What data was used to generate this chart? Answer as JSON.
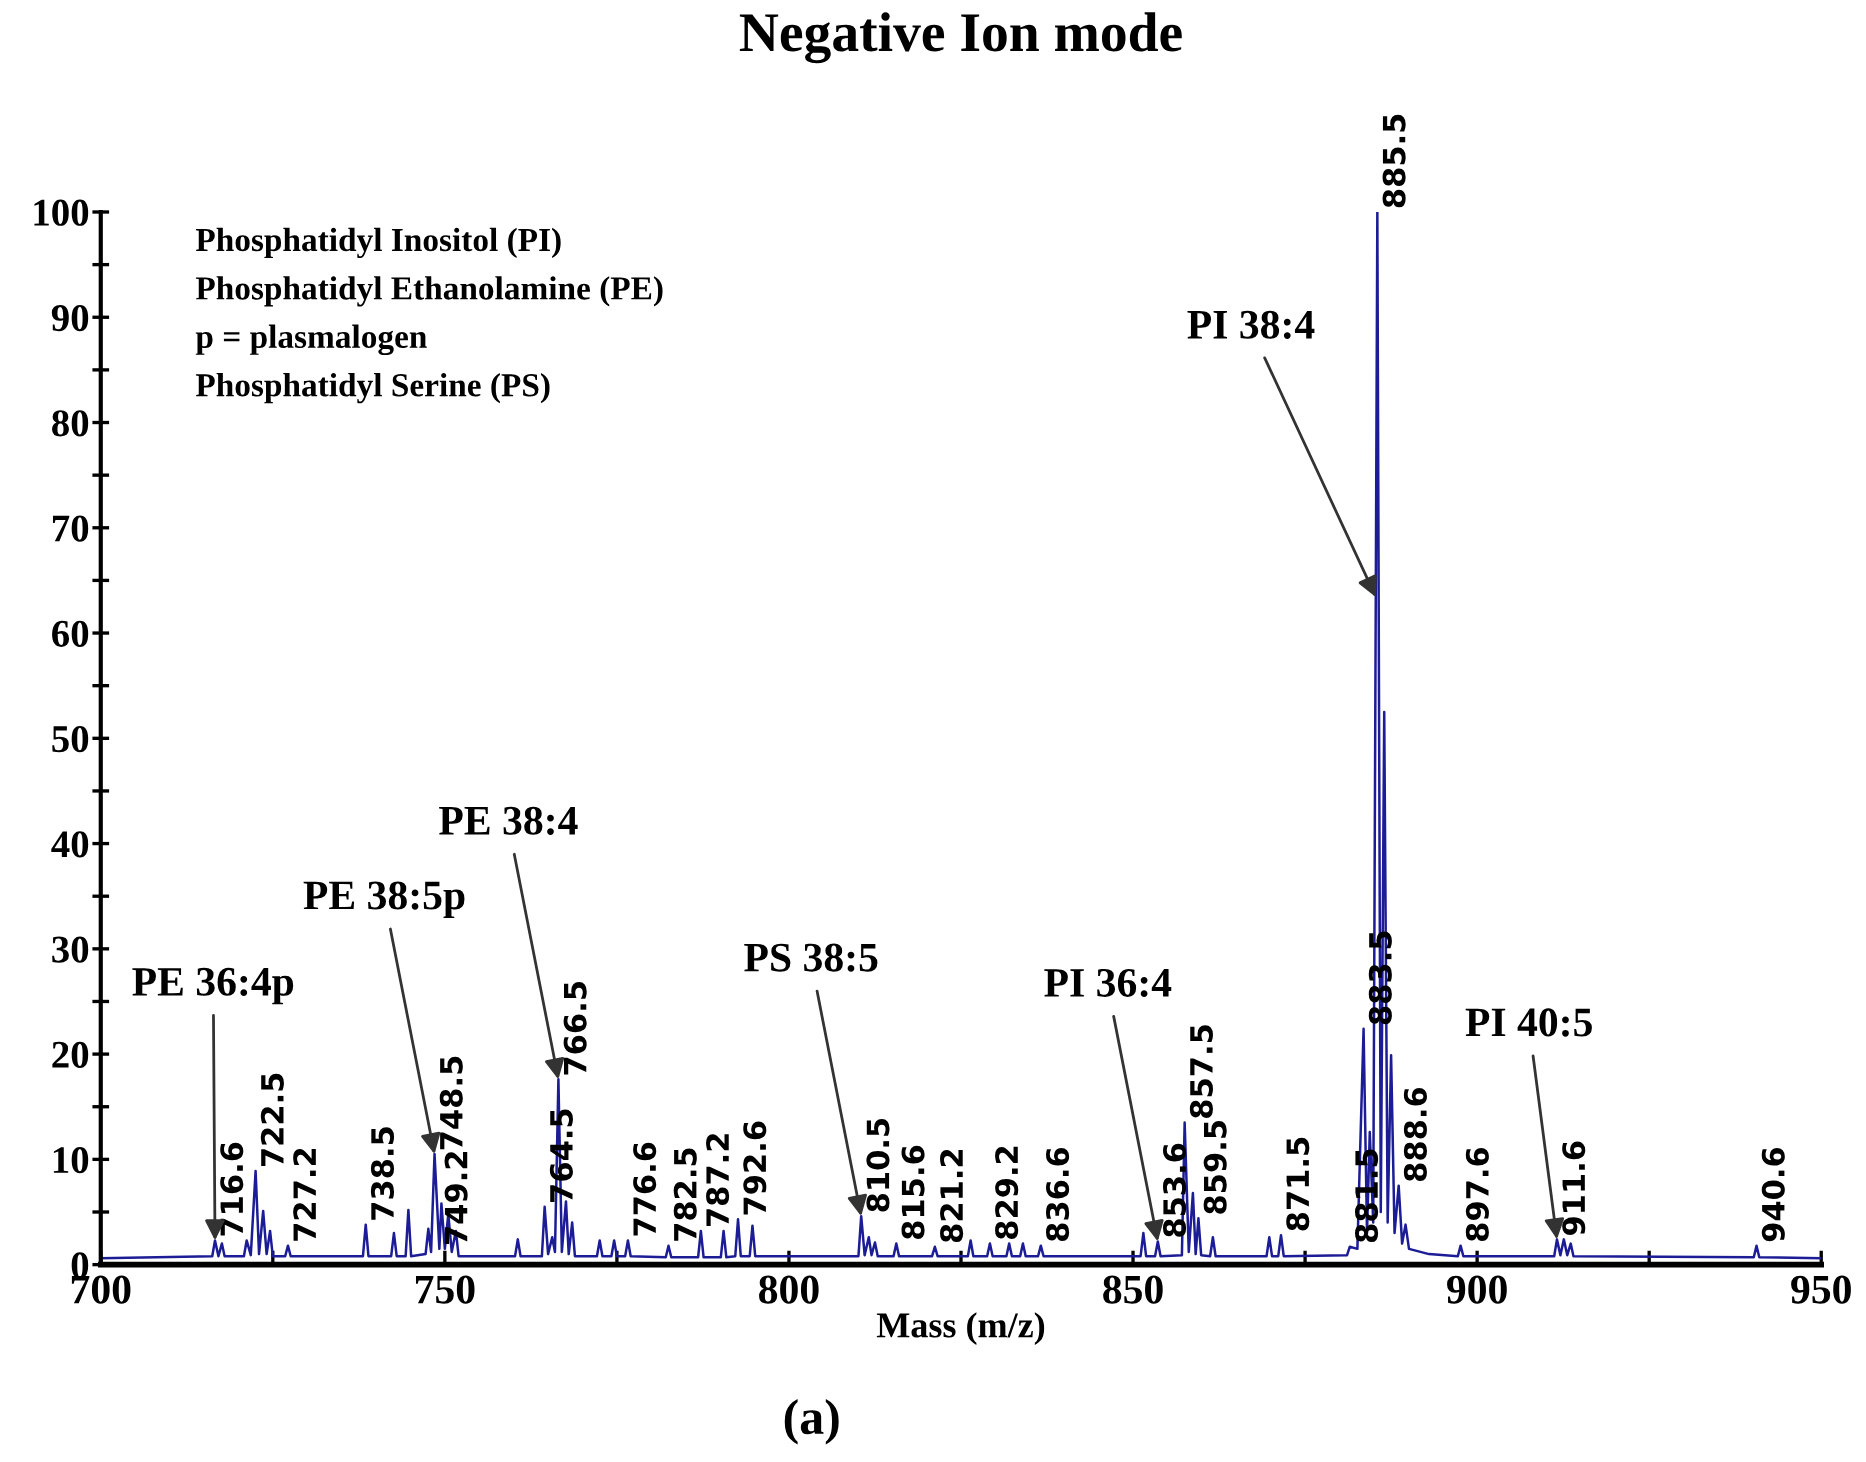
{
  "chart_data": {
    "type": "line",
    "title": "Negative Ion mode",
    "xlabel": "Mass (m/z)",
    "xlim": [
      700,
      950
    ],
    "ylim": [
      0,
      100
    ],
    "xticks": [
      700,
      {
        "value": 725,
        "label": null
      },
      750,
      {
        "value": 775,
        "label": null
      },
      800,
      {
        "value": 825,
        "label": null
      },
      850,
      {
        "value": 875,
        "label": null
      },
      900,
      {
        "value": 925,
        "label": null
      },
      950
    ],
    "yticks": [
      0,
      {
        "value": 5,
        "label": null
      },
      10,
      {
        "value": 15,
        "label": null
      },
      20,
      {
        "value": 25,
        "label": null
      },
      30,
      {
        "value": 35,
        "label": null
      },
      40,
      {
        "value": 45,
        "label": null
      },
      50,
      {
        "value": 55,
        "label": null
      },
      60,
      {
        "value": 65,
        "label": null
      },
      70,
      {
        "value": 75,
        "label": null
      },
      80,
      {
        "value": 85,
        "label": null
      },
      90,
      {
        "value": 95,
        "label": null
      },
      100
    ],
    "grid": false,
    "legend": false,
    "marker": "none",
    "line_style": "solid",
    "series": [
      {
        "color": "#1c1c96",
        "x": [
          700,
          716.2,
          716.6,
          717.1,
          717.6,
          718.0,
          720.8,
          721.2,
          721.8,
          722.5,
          723.0,
          723.6,
          724.1,
          724.6,
          725.0,
          726.8,
          727.2,
          727.6,
          738.1,
          738.5,
          738.9,
          742.2,
          742.6,
          743.0,
          744.3,
          744.7,
          745.1,
          747.2,
          747.6,
          748.0,
          748.5,
          749.2,
          749.5,
          750.0,
          750.5,
          751.0,
          751.6,
          752.0,
          760.2,
          760.6,
          761.0,
          764.1,
          764.5,
          765.0,
          765.6,
          766.0,
          766.5,
          767.0,
          767.6,
          768.0,
          768.5,
          768.9,
          772.1,
          772.5,
          772.9,
          774.2,
          774.6,
          775.0,
          776.2,
          776.6,
          777.0,
          782.1,
          782.5,
          782.9,
          786.8,
          787.2,
          787.6,
          790.1,
          790.5,
          790.9,
          792.2,
          792.6,
          793.0,
          794.3,
          794.7,
          795.1,
          810.1,
          810.5,
          811.0,
          811.6,
          812.0,
          812.5,
          812.9,
          815.2,
          815.6,
          816.0,
          820.8,
          821.2,
          821.6,
          826.0,
          826.4,
          826.8,
          828.8,
          829.2,
          829.6,
          831.6,
          832.0,
          832.4,
          833.6,
          834.0,
          834.4,
          836.2,
          836.6,
          837.0,
          851.1,
          851.5,
          851.9,
          853.2,
          853.6,
          854.0,
          857.1,
          857.5,
          858.1,
          858.7,
          859.1,
          859.5,
          859.9,
          861.2,
          861.6,
          862.0,
          869.4,
          869.8,
          870.2,
          871.1,
          871.5,
          871.9,
          881.1,
          881.5,
          882.6,
          883.5,
          884.0,
          884.4,
          884.9,
          885.5,
          886.0,
          886.5,
          887.0,
          887.5,
          888.0,
          888.6,
          889.1,
          889.6,
          890.1,
          893,
          897.2,
          897.6,
          898.0,
          911.2,
          911.6,
          912.1,
          912.6,
          913.1,
          913.6,
          914.0,
          940.2,
          940.6,
          941.0,
          950
        ],
        "values": [
          0.6,
          0.8,
          2.3,
          0.8,
          2.0,
          0.8,
          0.8,
          2.3,
          0.9,
          8.9,
          1.0,
          5.1,
          1.0,
          3.2,
          0.8,
          0.8,
          1.8,
          0.8,
          0.8,
          3.8,
          0.8,
          0.8,
          3.0,
          0.8,
          0.8,
          5.2,
          0.8,
          1.0,
          3.4,
          1.2,
          10.5,
          1.5,
          5.8,
          1.5,
          4.8,
          1.2,
          3.2,
          0.8,
          0.8,
          2.4,
          0.8,
          0.8,
          5.5,
          1.0,
          2.6,
          1.2,
          17.6,
          1.2,
          6.0,
          1.0,
          4.0,
          0.8,
          0.8,
          2.3,
          0.8,
          0.8,
          2.3,
          0.8,
          0.8,
          2.3,
          0.8,
          0.7,
          1.8,
          0.7,
          0.7,
          3.2,
          0.7,
          0.7,
          3.2,
          0.7,
          0.8,
          4.3,
          0.8,
          0.8,
          3.7,
          0.8,
          0.8,
          4.6,
          0.9,
          2.6,
          0.9,
          2.1,
          0.8,
          0.8,
          2.0,
          0.8,
          0.8,
          1.7,
          0.8,
          0.8,
          2.3,
          0.8,
          0.8,
          2.0,
          0.8,
          0.8,
          2.0,
          0.8,
          0.8,
          2.0,
          0.8,
          0.8,
          1.8,
          0.8,
          0.8,
          3.0,
          0.8,
          0.8,
          2.2,
          0.8,
          0.9,
          13.5,
          1.2,
          6.8,
          1.0,
          4.4,
          0.9,
          0.8,
          2.6,
          0.8,
          0.8,
          2.6,
          0.8,
          0.8,
          2.8,
          0.8,
          0.9,
          1.7,
          1.5,
          22.4,
          3.0,
          12.6,
          4.0,
          100,
          5.0,
          52.5,
          4.0,
          19.9,
          3.0,
          7.5,
          2.0,
          3.8,
          1.5,
          1.0,
          0.8,
          1.8,
          0.8,
          0.8,
          2.4,
          0.9,
          2.4,
          0.9,
          2.0,
          0.8,
          0.7,
          1.8,
          0.7,
          0.6
        ]
      }
    ],
    "annotations": [
      "Phosphatidyl Inositol (PI)",
      "Phosphatidyl Ethanolamine (PE)",
      "p = plasmalogen",
      "Phosphatidyl Serine (PS)",
      {
        "text": "716.6",
        "x": 716.6,
        "y": 2.3
      },
      {
        "text": "722.5",
        "x": 722.5,
        "y": 8.9
      },
      {
        "text": "727.2",
        "x": 727.2,
        "y": 1.8
      },
      {
        "text": "738.5",
        "x": 738.5,
        "y": 3.8
      },
      {
        "text": "748.5",
        "x": 748.5,
        "y": 10.5
      },
      {
        "text": "749.2",
        "x": 749.2,
        "y": 1.5
      },
      {
        "text": "764.5",
        "x": 764.5,
        "y": 5.5
      },
      {
        "text": "766.5",
        "x": 766.5,
        "y": 17.6
      },
      {
        "text": "776.6",
        "x": 776.6,
        "y": 2.3
      },
      {
        "text": "782.5",
        "x": 782.5,
        "y": 1.8
      },
      {
        "text": "787.2",
        "x": 787.2,
        "y": 3.2
      },
      {
        "text": "792.6",
        "x": 792.6,
        "y": 4.3
      },
      {
        "text": "810.5",
        "x": 810.5,
        "y": 4.6
      },
      {
        "text": "815.6",
        "x": 815.6,
        "y": 2.0
      },
      {
        "text": "821.2",
        "x": 821.2,
        "y": 1.7
      },
      {
        "text": "829.2",
        "x": 829.2,
        "y": 2.0
      },
      {
        "text": "836.6",
        "x": 836.6,
        "y": 1.8
      },
      {
        "text": "853.6",
        "x": 853.6,
        "y": 2.2
      },
      {
        "text": "857.5",
        "x": 857.5,
        "y": 13.5
      },
      {
        "text": "859.5",
        "x": 859.5,
        "y": 4.4
      },
      {
        "text": "871.5",
        "x": 871.5,
        "y": 2.8
      },
      {
        "text": "881.5",
        "x": 881.5,
        "y": 1.7
      },
      {
        "text": "883.5",
        "x": 883.5,
        "y": 22.4
      },
      {
        "text": "885.5",
        "x": 885.5,
        "y": 100
      },
      {
        "text": "888.6",
        "x": 888.6,
        "y": 7.5
      },
      {
        "text": "897.6",
        "x": 897.6,
        "y": 1.8
      },
      {
        "text": "911.6",
        "x": 911.6,
        "y": 2.4
      },
      {
        "text": "940.6",
        "x": 940.6,
        "y": 1.8
      },
      {
        "text": "PE 36:4p",
        "x": 716.6,
        "y": 2.3
      },
      {
        "text": "PE 38:5p",
        "x": 748.5,
        "y": 10.5
      },
      {
        "text": "PE 38:4",
        "x": 766.5,
        "y": 17.6
      },
      {
        "text": "PS 38:5",
        "x": 810.5,
        "y": 4.6
      },
      {
        "text": "PI 36:4",
        "x": 853.6,
        "y": 2.2
      },
      {
        "text": "PI 38:4",
        "x": 885.3,
        "y": 63.4
      },
      {
        "text": "PI 40:5",
        "x": 911.6,
        "y": 2.4
      },
      "(a)"
    ]
  }
}
